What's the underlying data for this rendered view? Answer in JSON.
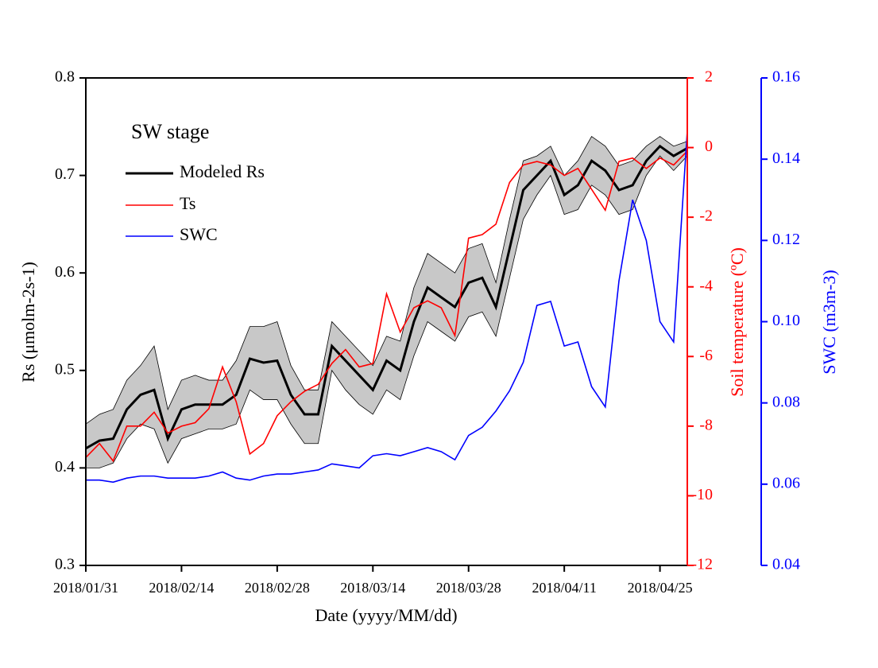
{
  "chart_data": {
    "type": "line",
    "legend_title": "SW stage",
    "x_label": "Date (yyyy/MM/dd)",
    "y_label": "Rs (μmolm-2s-1)",
    "y2_label": "Soil temperature (ºC)",
    "y3_label": "SWC (m3m-3)",
    "x": [
      "2018/01/31",
      "2018/02/02",
      "2018/02/04",
      "2018/02/06",
      "2018/02/08",
      "2018/02/10",
      "2018/02/12",
      "2018/02/14",
      "2018/02/16",
      "2018/02/18",
      "2018/02/20",
      "2018/02/22",
      "2018/02/24",
      "2018/02/26",
      "2018/02/28",
      "2018/03/02",
      "2018/03/04",
      "2018/03/06",
      "2018/03/08",
      "2018/03/10",
      "2018/03/12",
      "2018/03/14",
      "2018/03/16",
      "2018/03/18",
      "2018/03/20",
      "2018/03/22",
      "2018/03/24",
      "2018/03/26",
      "2018/03/28",
      "2018/03/30",
      "2018/04/01",
      "2018/04/03",
      "2018/04/05",
      "2018/04/07",
      "2018/04/09",
      "2018/04/11",
      "2018/04/13",
      "2018/04/15",
      "2018/04/17",
      "2018/04/19",
      "2018/04/21",
      "2018/04/23",
      "2018/04/25",
      "2018/04/27",
      "2018/04/29"
    ],
    "xlim": [
      "2018/01/31",
      "2018/04/29"
    ],
    "xticks": [
      "2018/01/31",
      "2018/02/14",
      "2018/02/28",
      "2018/03/14",
      "2018/03/28",
      "2018/04/11",
      "2018/04/25"
    ],
    "ylim": [
      0.3,
      0.8
    ],
    "yticks": [
      0.3,
      0.4,
      0.5,
      0.6,
      0.7,
      0.8
    ],
    "y2lim": [
      -12,
      2
    ],
    "y2ticks": [
      -12,
      -10,
      -8,
      -6,
      -4,
      -2,
      0,
      2
    ],
    "y3lim": [
      0.04,
      0.16
    ],
    "y3ticks": [
      0.04,
      0.06,
      0.08,
      {
        "value": 0.1,
        "label": "0.10"
      },
      0.12,
      0.14,
      0.16
    ],
    "series": [
      {
        "name": "Modeled Rs",
        "color": "#000000",
        "axis": "y",
        "band_color": "#c8c8c8",
        "values": [
          0.42,
          0.428,
          0.43,
          0.46,
          0.475,
          0.48,
          0.43,
          0.46,
          0.465,
          0.465,
          0.465,
          0.475,
          0.512,
          0.508,
          0.51,
          0.475,
          0.455,
          0.455,
          0.525,
          0.51,
          0.495,
          0.48,
          0.51,
          0.5,
          0.55,
          0.585,
          0.575,
          0.565,
          0.59,
          0.595,
          0.565,
          0.625,
          0.685,
          0.7,
          0.715,
          0.68,
          0.69,
          0.715,
          0.705,
          0.685,
          0.69,
          0.715,
          0.73,
          0.72,
          0.728
        ],
        "upper": [
          0.445,
          0.455,
          0.46,
          0.49,
          0.505,
          0.525,
          0.46,
          0.49,
          0.495,
          0.49,
          0.49,
          0.51,
          0.545,
          0.545,
          0.55,
          0.505,
          0.48,
          0.48,
          0.55,
          0.535,
          0.52,
          0.505,
          0.535,
          0.53,
          0.585,
          0.62,
          0.61,
          0.6,
          0.625,
          0.63,
          0.59,
          0.655,
          0.715,
          0.72,
          0.73,
          0.7,
          0.715,
          0.74,
          0.73,
          0.71,
          0.715,
          0.73,
          0.74,
          0.73,
          0.735
        ],
        "lower": [
          0.4,
          0.4,
          0.405,
          0.43,
          0.445,
          0.44,
          0.405,
          0.43,
          0.435,
          0.44,
          0.44,
          0.445,
          0.48,
          0.47,
          0.47,
          0.445,
          0.425,
          0.425,
          0.5,
          0.48,
          0.465,
          0.455,
          0.48,
          0.47,
          0.515,
          0.55,
          0.54,
          0.53,
          0.555,
          0.56,
          0.535,
          0.595,
          0.655,
          0.68,
          0.7,
          0.66,
          0.665,
          0.69,
          0.68,
          0.66,
          0.665,
          0.7,
          0.72,
          0.705,
          0.72
        ]
      },
      {
        "name": "Ts",
        "color": "#ff0000",
        "axis": "y2",
        "values": [
          -8.9,
          -8.5,
          -9.0,
          -8.0,
          -8.0,
          -7.6,
          -8.2,
          -8.0,
          -7.9,
          -7.5,
          -6.3,
          -7.3,
          -8.8,
          -8.5,
          -7.7,
          -7.3,
          -7.0,
          -6.8,
          -6.2,
          -5.8,
          -6.3,
          -6.2,
          -4.2,
          -5.3,
          -4.6,
          -4.4,
          -4.6,
          -5.4,
          -2.6,
          -2.5,
          -2.2,
          -1.0,
          -0.5,
          -0.4,
          -0.5,
          -0.8,
          -0.6,
          -1.2,
          -1.8,
          -0.4,
          -0.3,
          -0.6,
          -0.3,
          -0.5,
          -0.1
        ]
      },
      {
        "name": "SWC",
        "color": "#0000ff",
        "axis": "y3",
        "values": [
          0.061,
          0.061,
          0.0605,
          0.0615,
          0.062,
          0.062,
          0.0615,
          0.0615,
          0.0615,
          0.062,
          0.063,
          0.0615,
          0.061,
          0.062,
          0.0625,
          0.0625,
          0.063,
          0.0635,
          0.065,
          0.0645,
          0.064,
          0.067,
          0.0675,
          0.067,
          0.068,
          0.069,
          0.068,
          0.066,
          0.072,
          0.074,
          0.078,
          0.083,
          0.09,
          0.104,
          0.105,
          0.094,
          0.095,
          0.084,
          0.079,
          0.11,
          0.13,
          0.12,
          0.1,
          0.095,
          0.147
        ]
      }
    ]
  }
}
